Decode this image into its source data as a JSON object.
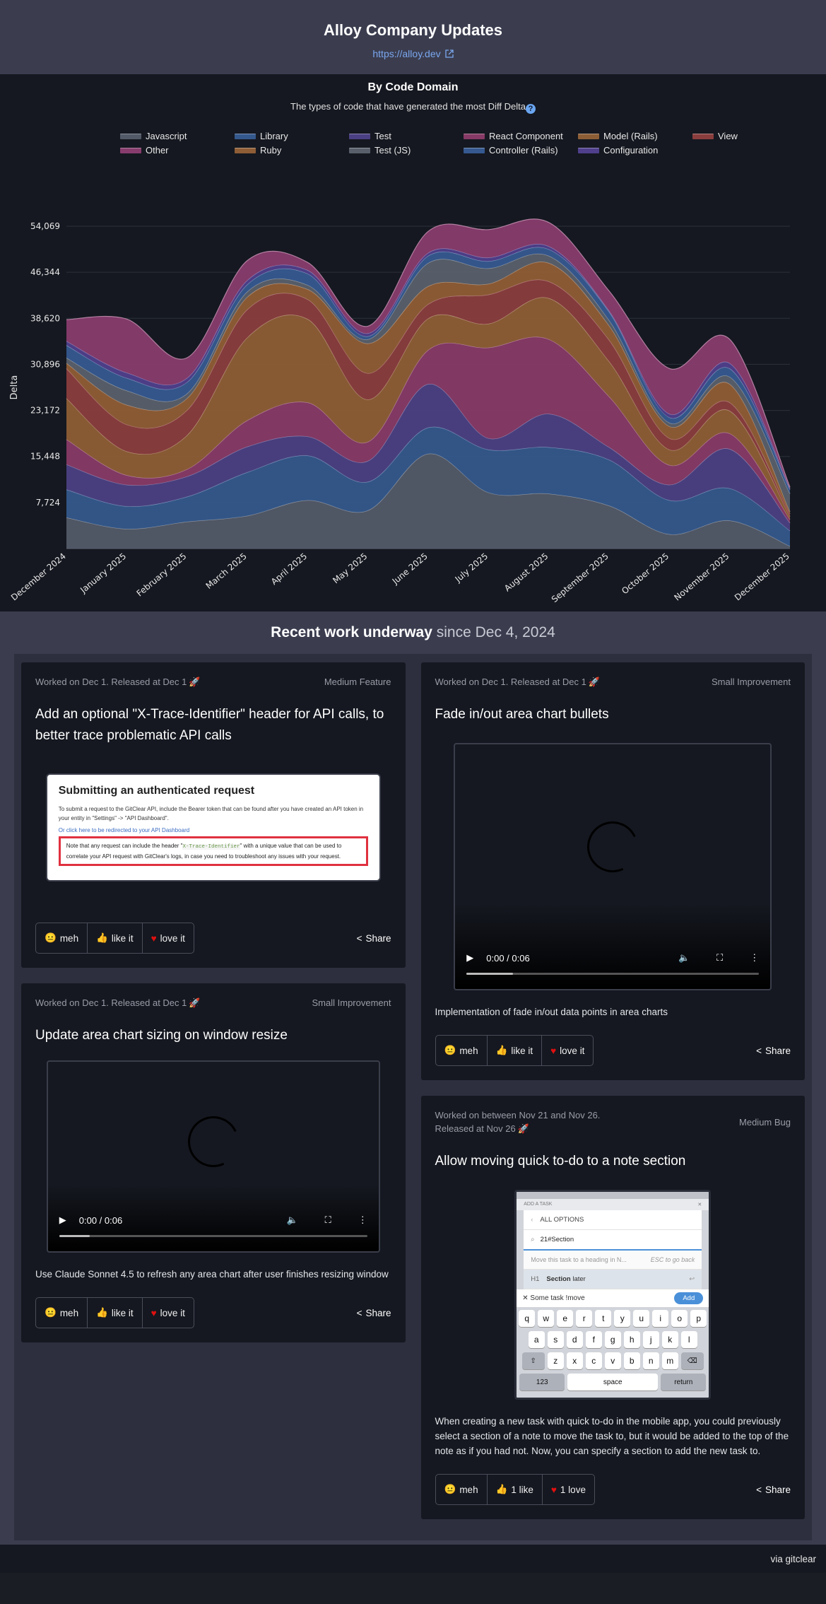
{
  "header": {
    "title": "Alloy Company Updates",
    "link": "https://alloy.dev"
  },
  "chart_section": {
    "title": "By Code Domain",
    "subtitle": "The types of code that have generated the most Diff Delta",
    "help_icon": "?"
  },
  "chart_data": {
    "type": "area",
    "stacked": true,
    "title": "By Code Domain",
    "subtitle": "The types of code that have generated the most Diff Delta",
    "xlabel": "",
    "ylabel": "Delta",
    "ylim": [
      0,
      54069
    ],
    "yticks": [
      "7,724",
      "15,448",
      "23,172",
      "30,896",
      "38,620",
      "46,344",
      "54,069"
    ],
    "ytick_values": [
      7724,
      15448,
      23172,
      30896,
      38620,
      46344,
      54069
    ],
    "grid": true,
    "legend_position": "top",
    "categories": [
      "December 2024",
      "January 2025",
      "February 2025",
      "March 2025",
      "April 2025",
      "May 2025",
      "June 2025",
      "July 2025",
      "August 2025",
      "September 2025",
      "October 2025",
      "November 2025",
      "December 2025"
    ],
    "series": [
      {
        "name": "Javascript",
        "color": "#525a68",
        "values": [
          5200,
          3300,
          4500,
          5500,
          8100,
          6400,
          15900,
          9400,
          9200,
          7200,
          2400,
          4700,
          400
        ]
      },
      {
        "name": "Library",
        "color": "#34588c",
        "values": [
          4700,
          3800,
          4200,
          7300,
          7500,
          4800,
          4400,
          7200,
          7800,
          7700,
          5700,
          5400,
          2600
        ]
      },
      {
        "name": "Test",
        "color": "#4b4083",
        "values": [
          4200,
          3600,
          3400,
          4300,
          3200,
          3500,
          7300,
          1900,
          5600,
          2100,
          2600,
          6600,
          1300
        ]
      },
      {
        "name": "React Component",
        "color": "#873a66",
        "values": [
          4200,
          1600,
          1200,
          4400,
          5700,
          3200,
          5700,
          15200,
          12500,
          8500,
          3300,
          2600,
          600
        ]
      },
      {
        "name": "Model (Rails)",
        "color": "#8d5e36",
        "values": [
          6900,
          4000,
          5700,
          13900,
          14000,
          7100,
          5300,
          4000,
          6900,
          5900,
          2600,
          3800,
          500
        ]
      },
      {
        "name": "View",
        "color": "#8a3d3d",
        "values": [
          5000,
          4500,
          4200,
          4700,
          3300,
          4400,
          2400,
          4900,
          2800,
          3600,
          1900,
          1400,
          400
        ]
      },
      {
        "name": "Ruby",
        "color": "#8f5d36",
        "values": [
          900,
          3300,
          2000,
          2100,
          1700,
          5000,
          3000,
          1800,
          3100,
          2400,
          2000,
          3100,
          400
        ]
      },
      {
        "name": "Test (JS)",
        "color": "#59606c",
        "values": [
          900,
          2400,
          800,
          900,
          700,
          700,
          3900,
          2600,
          1200,
          900,
          600,
          1200,
          3000
        ]
      },
      {
        "name": "Controller (Rails)",
        "color": "#355990",
        "values": [
          2100,
          2100,
          1900,
          1200,
          1900,
          500,
          1200,
          1200,
          1100,
          1400,
          900,
          1400,
          700
        ]
      },
      {
        "name": "Configuration",
        "color": "#4f3f8c",
        "values": [
          700,
          900,
          700,
          700,
          600,
          500,
          500,
          600,
          500,
          200,
          600,
          900,
          200
        ]
      },
      {
        "name": "Other",
        "color": "#883c6e",
        "values": [
          3600,
          9000,
          3400,
          3300,
          1300,
          1200,
          3600,
          4700,
          4000,
          3300,
          7600,
          4000,
          200
        ]
      }
    ]
  },
  "work": {
    "title_strong": "Recent work underway",
    "title_light": "since Dec 4, 2024",
    "cards": [
      {
        "meta": "Worked on Dec 1.  Released at Dec 1",
        "kind": "Medium Feature",
        "title": "Add an optional \"X-Trace-Identifier\" header for API calls, to better trace problematic API calls",
        "screenshot": {
          "heading": "Submitting an authenticated request",
          "para": "To submit a request to the GitClear API, include the Bearer token that can be found after you have created an API token in your entity in \"Settings\" -> \"API Dashboard\".",
          "link": "Or click here to be redirected to your API Dashboard",
          "note_pre": "Note that any request can include the header \"",
          "note_code": "X-Trace-Identifier",
          "note_post": "\" with a unique value that can be used to correlate your API request with GitClear's logs, in case you need to troubleshoot any issues with your request."
        },
        "reactions": {
          "meh": "meh",
          "like": "like it",
          "love": "love it"
        },
        "share": "Share"
      },
      {
        "meta": "Worked on Dec 1.  Released at Dec 1",
        "kind": "Small Improvement",
        "title": "Update area chart sizing on window resize",
        "video": {
          "time": "0:00 / 0:06",
          "buffered_percent": 10
        },
        "description": "Use Claude Sonnet 4.5 to refresh any area chart after user finishes resizing window",
        "reactions": {
          "meh": "meh",
          "like": "like it",
          "love": "love it"
        },
        "share": "Share"
      },
      {
        "meta": "Worked on Dec 1.  Released at Dec 1",
        "kind": "Small Improvement",
        "title": "Fade in/out area chart bullets",
        "video": {
          "time": "0:00 / 0:06",
          "buffered_percent": 16
        },
        "description": "Implementation of fade in/out data points in area charts",
        "reactions": {
          "meh": "meh",
          "like": "like it",
          "love": "love it"
        },
        "share": "Share"
      },
      {
        "meta_line1": "Worked on between Nov 21 and Nov 26.",
        "meta_line2": "Released at Nov 26",
        "kind": "Medium Bug",
        "title": "Allow moving quick to-do to a note section",
        "phone": {
          "add_task": "ADD A TASK",
          "all_options": "ALL OPTIONS",
          "search": "21#Section",
          "hint": "Move this task to a heading in N...",
          "hint_esc": "ESC to go back",
          "section_h": "H1",
          "section_name": "Section",
          "section_rest": "later",
          "task": "Some task !move",
          "add": "Add",
          "row1": [
            "q",
            "w",
            "e",
            "r",
            "t",
            "y",
            "u",
            "i",
            "o",
            "p"
          ],
          "row2": [
            "a",
            "s",
            "d",
            "f",
            "g",
            "h",
            "j",
            "k",
            "l"
          ],
          "row3": [
            "z",
            "x",
            "c",
            "v",
            "b",
            "n",
            "m"
          ],
          "num": "123",
          "space": "space",
          "return": "return"
        },
        "description": "When creating a new task with quick to-do in the mobile app, you could previously select a section of a note to move the task to, but it would be added to the top of the note as if you had not. Now, you can specify a section to add the new task to.",
        "reactions": {
          "meh": "meh",
          "like": "1 like",
          "love": "1 love"
        },
        "share": "Share"
      }
    ]
  },
  "footer": {
    "text": "via gitclear"
  }
}
